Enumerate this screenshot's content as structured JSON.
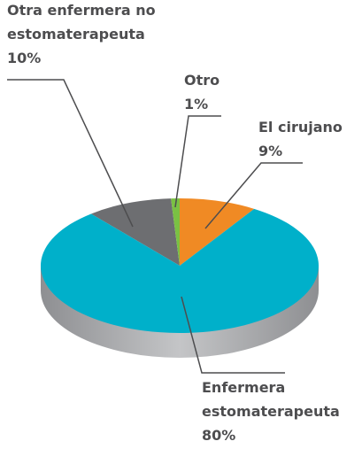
{
  "chart_data": {
    "type": "pie",
    "categories": [
      "Otra enfermera no estomaterapeuta",
      "Otro",
      "El cirujano",
      "Enfermera estomaterapeuta"
    ],
    "values": [
      10,
      1,
      9,
      80
    ],
    "value_labels": [
      "10%",
      "1%",
      "9%",
      "80%"
    ],
    "colors": [
      "#6d6e71",
      "#7ac143",
      "#f08a24",
      "#00b0ca"
    ]
  }
}
